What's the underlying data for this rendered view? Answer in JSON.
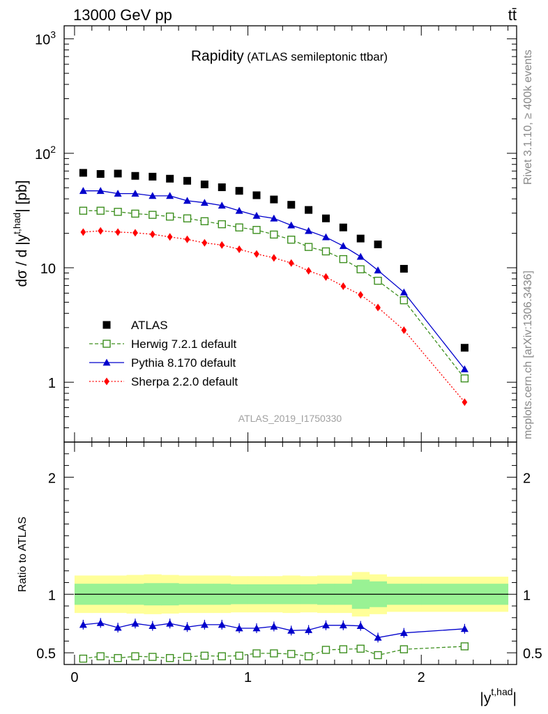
{
  "header": {
    "energy_label": "13000 GeV pp",
    "process_label": "tt̄"
  },
  "side_labels": {
    "rivet": "Rivet 3.1.10, ≥ 400k events",
    "mcplots": "mcplots.cern.ch [arXiv:1306.3436]"
  },
  "chart_data": {
    "type": "scatter",
    "title": "Rapidity",
    "subtitle": "(ATLAS semileptonic ttbar)",
    "analysis_id": "ATLAS_2019_I1750330",
    "main": {
      "ylabel_prefix": "dσ / d |y",
      "ylabel_sup": "t,had",
      "ylabel_suffix": "| [pb]",
      "yscale": "log",
      "ylim": [
        0.3,
        1300
      ],
      "yticks": [
        {
          "value": 1,
          "label": "1"
        },
        {
          "value": 10,
          "label": "10"
        },
        {
          "value": 100,
          "label_base": "10",
          "label_exp": "2"
        },
        {
          "value": 1000,
          "label_base": "10",
          "label_exp": "3"
        }
      ],
      "legend_position": "middle-left"
    },
    "ratio": {
      "ylabel": "Ratio to ATLAS",
      "ylim": [
        0.4,
        2.3
      ],
      "yticks": [
        {
          "value": 0.5,
          "label": "0.5"
        },
        {
          "value": 1,
          "label": "1"
        },
        {
          "value": 2,
          "label": "2"
        }
      ],
      "reference_line": 1,
      "yellow_band": [
        {
          "x0": 0.0,
          "x1": 0.1,
          "lo": 0.84,
          "hi": 1.16
        },
        {
          "x0": 0.1,
          "x1": 0.2,
          "lo": 0.84,
          "hi": 1.16
        },
        {
          "x0": 0.2,
          "x1": 0.3,
          "lo": 0.84,
          "hi": 1.16
        },
        {
          "x0": 0.3,
          "x1": 0.4,
          "lo": 0.835,
          "hi": 1.165
        },
        {
          "x0": 0.4,
          "x1": 0.5,
          "lo": 0.83,
          "hi": 1.17
        },
        {
          "x0": 0.5,
          "x1": 0.6,
          "lo": 0.835,
          "hi": 1.165
        },
        {
          "x0": 0.6,
          "x1": 0.7,
          "lo": 0.84,
          "hi": 1.16
        },
        {
          "x0": 0.7,
          "x1": 0.8,
          "lo": 0.84,
          "hi": 1.16
        },
        {
          "x0": 0.8,
          "x1": 0.9,
          "lo": 0.84,
          "hi": 1.16
        },
        {
          "x0": 0.9,
          "x1": 1.0,
          "lo": 0.845,
          "hi": 1.155
        },
        {
          "x0": 1.0,
          "x1": 1.1,
          "lo": 0.845,
          "hi": 1.155
        },
        {
          "x0": 1.1,
          "x1": 1.2,
          "lo": 0.845,
          "hi": 1.155
        },
        {
          "x0": 1.2,
          "x1": 1.3,
          "lo": 0.84,
          "hi": 1.16
        },
        {
          "x0": 1.3,
          "x1": 1.4,
          "lo": 0.845,
          "hi": 1.155
        },
        {
          "x0": 1.4,
          "x1": 1.5,
          "lo": 0.84,
          "hi": 1.16
        },
        {
          "x0": 1.5,
          "x1": 1.6,
          "lo": 0.84,
          "hi": 1.16
        },
        {
          "x0": 1.6,
          "x1": 1.7,
          "lo": 0.81,
          "hi": 1.19
        },
        {
          "x0": 1.7,
          "x1": 1.8,
          "lo": 0.83,
          "hi": 1.17
        },
        {
          "x0": 1.8,
          "x1": 2.0,
          "lo": 0.85,
          "hi": 1.15
        },
        {
          "x0": 2.0,
          "x1": 2.5,
          "lo": 0.85,
          "hi": 1.15
        }
      ],
      "green_band": [
        {
          "x0": 0.0,
          "x1": 0.1,
          "lo": 0.91,
          "hi": 1.09
        },
        {
          "x0": 0.1,
          "x1": 0.2,
          "lo": 0.91,
          "hi": 1.09
        },
        {
          "x0": 0.2,
          "x1": 0.3,
          "lo": 0.91,
          "hi": 1.09
        },
        {
          "x0": 0.3,
          "x1": 0.4,
          "lo": 0.91,
          "hi": 1.09
        },
        {
          "x0": 0.4,
          "x1": 0.5,
          "lo": 0.905,
          "hi": 1.095
        },
        {
          "x0": 0.5,
          "x1": 0.6,
          "lo": 0.905,
          "hi": 1.095
        },
        {
          "x0": 0.6,
          "x1": 0.7,
          "lo": 0.91,
          "hi": 1.09
        },
        {
          "x0": 0.7,
          "x1": 0.8,
          "lo": 0.91,
          "hi": 1.09
        },
        {
          "x0": 0.8,
          "x1": 0.9,
          "lo": 0.91,
          "hi": 1.09
        },
        {
          "x0": 0.9,
          "x1": 1.0,
          "lo": 0.915,
          "hi": 1.085
        },
        {
          "x0": 1.0,
          "x1": 1.1,
          "lo": 0.915,
          "hi": 1.085
        },
        {
          "x0": 1.1,
          "x1": 1.2,
          "lo": 0.915,
          "hi": 1.085
        },
        {
          "x0": 1.2,
          "x1": 1.3,
          "lo": 0.915,
          "hi": 1.085
        },
        {
          "x0": 1.3,
          "x1": 1.4,
          "lo": 0.915,
          "hi": 1.085
        },
        {
          "x0": 1.4,
          "x1": 1.5,
          "lo": 0.91,
          "hi": 1.09
        },
        {
          "x0": 1.5,
          "x1": 1.6,
          "lo": 0.91,
          "hi": 1.09
        },
        {
          "x0": 1.6,
          "x1": 1.7,
          "lo": 0.875,
          "hi": 1.125
        },
        {
          "x0": 1.7,
          "x1": 1.8,
          "lo": 0.89,
          "hi": 1.11
        },
        {
          "x0": 1.8,
          "x1": 2.0,
          "lo": 0.91,
          "hi": 1.09
        },
        {
          "x0": 2.0,
          "x1": 2.5,
          "lo": 0.91,
          "hi": 1.09
        }
      ]
    },
    "x": {
      "label": "|y",
      "label_sup": "t,had",
      "label_suffix": "|",
      "xlim": [
        -0.06,
        2.55
      ],
      "ticks": [
        {
          "value": 0,
          "label": "0"
        },
        {
          "value": 1,
          "label": "1"
        },
        {
          "value": 2,
          "label": "2"
        }
      ]
    },
    "bins": [
      0.05,
      0.15,
      0.25,
      0.35,
      0.45,
      0.55,
      0.65,
      0.75,
      0.85,
      0.95,
      1.05,
      1.15,
      1.25,
      1.35,
      1.45,
      1.55,
      1.65,
      1.75,
      1.9,
      2.25
    ],
    "series": [
      {
        "name": "ATLAS",
        "color": "#000000",
        "marker": "square-filled",
        "line": "none",
        "values": [
          67.5,
          66.0,
          66.5,
          63.5,
          62.5,
          60.0,
          57.5,
          53.5,
          50.5,
          47.0,
          43.0,
          39.5,
          35.5,
          32.0,
          27.0,
          22.5,
          18.0,
          16.0,
          9.8,
          2.0
        ]
      },
      {
        "name": "Herwig 7.2.1 default",
        "color": "#3d8f1f",
        "marker": "square-open",
        "line": "dashed",
        "values": [
          31.5,
          31.5,
          30.8,
          29.7,
          29.0,
          28.0,
          27.0,
          25.5,
          24.0,
          22.5,
          21.4,
          19.5,
          17.6,
          15.2,
          13.9,
          11.9,
          9.7,
          7.7,
          5.2,
          1.08
        ],
        "ratio": [
          0.45,
          0.47,
          0.455,
          0.47,
          0.465,
          0.455,
          0.465,
          0.475,
          0.47,
          0.475,
          0.495,
          0.495,
          0.49,
          0.47,
          0.525,
          0.53,
          0.535,
          0.48,
          0.53,
          0.555
        ]
      },
      {
        "name": "Pythia 8.170 default",
        "color": "#0000cc",
        "marker": "triangle-filled",
        "line": "solid",
        "values": [
          47.0,
          47.0,
          44.5,
          44.5,
          42.5,
          42.5,
          38.5,
          37.0,
          35.0,
          31.5,
          28.5,
          27.0,
          23.5,
          21.0,
          18.5,
          15.5,
          12.5,
          9.5,
          6.1,
          1.3
        ],
        "ratio": [
          0.74,
          0.755,
          0.715,
          0.75,
          0.73,
          0.75,
          0.72,
          0.74,
          0.74,
          0.71,
          0.71,
          0.725,
          0.69,
          0.695,
          0.735,
          0.735,
          0.73,
          0.63,
          0.67,
          0.705
        ]
      },
      {
        "name": "Sherpa 2.2.0 default",
        "color": "#ff0000",
        "marker": "diamond-filled",
        "line": "dotted",
        "values": [
          20.5,
          21.0,
          20.5,
          20.2,
          19.6,
          18.6,
          17.7,
          16.5,
          15.8,
          14.5,
          13.2,
          12.2,
          11.0,
          9.4,
          8.3,
          6.9,
          5.8,
          4.5,
          2.85,
          0.67
        ]
      }
    ]
  }
}
